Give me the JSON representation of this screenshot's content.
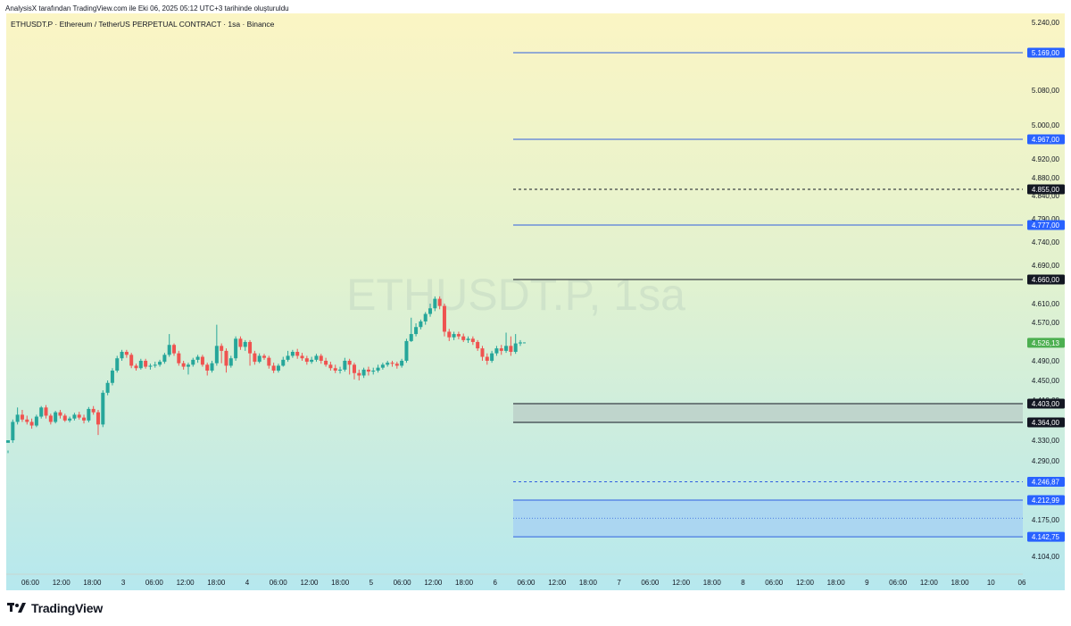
{
  "header": {
    "credit": "AnalysisX tarafından TradingView.com ile Eki 06, 2025 05:12 UTC+3 tarihinde oluşturuldu",
    "symbol_line": "ETHUSDT.P · Ethereum / TetherUS PERPETUAL CONTRACT · 1sa · Binance"
  },
  "watermark": "ETHUSDT.P, 1sa",
  "footer": {
    "brand": "TradingView",
    "logo_icon": "tradingview-logo-icon"
  },
  "colors": {
    "bg_top": "#fbf5c4",
    "bg_bottom": "#b6e8ee",
    "up": "#26a69a",
    "down": "#ef5350",
    "blue_line": "#2f5fe0",
    "blue_zone": "#a8d4f2",
    "grey_zone": "#b7c7c3",
    "current_price_label": "#4caf50"
  },
  "chart_data": {
    "type": "candlestick",
    "y_axis_ticks": [
      {
        "value": 5240,
        "label": "5.240,00"
      },
      {
        "value": 5080,
        "label": "5.080,00"
      },
      {
        "value": 5000,
        "label": "5.000,00"
      },
      {
        "value": 4920,
        "label": "4.920,00"
      },
      {
        "value": 4880,
        "label": "4.880,00"
      },
      {
        "value": 4840,
        "label": "4.840,00"
      },
      {
        "value": 4790,
        "label": "4.790,00"
      },
      {
        "value": 4740,
        "label": "4.740,00"
      },
      {
        "value": 4690,
        "label": "4.690,00"
      },
      {
        "value": 4610,
        "label": "4.610,00"
      },
      {
        "value": 4570,
        "label": "4.570,00"
      },
      {
        "value": 4490,
        "label": "4.490,00"
      },
      {
        "value": 4450,
        "label": "4.450,00"
      },
      {
        "value": 4410,
        "label": "4.410,00"
      },
      {
        "value": 4330,
        "label": "4.330,00"
      },
      {
        "value": 4290,
        "label": "4.290,00"
      },
      {
        "value": 4175,
        "label": "4.175,00"
      },
      {
        "value": 4104,
        "label": "4.104,00"
      }
    ],
    "x_axis_labels": [
      "06:00",
      "12:00",
      "18:00",
      "3",
      "06:00",
      "12:00",
      "18:00",
      "4",
      "06:00",
      "12:00",
      "18:00",
      "5",
      "06:00",
      "12:00",
      "18:00",
      "6",
      "06:00",
      "12:00",
      "18:00",
      "7",
      "06:00",
      "12:00",
      "18:00",
      "8",
      "06:00",
      "12:00",
      "18:00",
      "9",
      "06:00",
      "12:00",
      "18:00",
      "10",
      "06"
    ],
    "horizontal_levels": [
      {
        "value": 5169,
        "label": "5.169,00",
        "style": "solid",
        "color": "#2f5fe0"
      },
      {
        "value": 4967,
        "label": "4.967,00",
        "style": "solid",
        "color": "#2f5fe0"
      },
      {
        "value": 4855,
        "label": "4.855,00",
        "style": "dashed",
        "color": "#131722"
      },
      {
        "value": 4777,
        "label": "4.777,00",
        "style": "solid",
        "color": "#2f5fe0"
      },
      {
        "value": 4660,
        "label": "4.660,00",
        "style": "solid",
        "color": "#131722"
      },
      {
        "value": 4403,
        "label": "4.403,00",
        "style": "solid",
        "color": "#131722"
      },
      {
        "value": 4364,
        "label": "4.364,00",
        "style": "solid",
        "color": "#131722"
      },
      {
        "value": 4246.87,
        "label": "4.246,87",
        "style": "dashed",
        "color": "#2f5fe0"
      },
      {
        "value": 4212.99,
        "label": "4.212,99",
        "style": "solid",
        "color": "#2f5fe0"
      },
      {
        "value": 4142.75,
        "label": "4.142,75",
        "style": "solid",
        "color": "#2f5fe0"
      }
    ],
    "zones": [
      {
        "top": 4403,
        "bottom": 4364,
        "kind": "grey"
      },
      {
        "top": 4212.99,
        "bottom": 4142.75,
        "kind": "blue",
        "midline": 4178
      }
    ],
    "current_price": {
      "value": 4526.13,
      "label": "4.526,13"
    },
    "candle_interval": "1sa",
    "candles": [
      [
        4325,
        4330,
        4310,
        4305
      ],
      [
        4330,
        4365,
        4370,
        4325
      ],
      [
        4365,
        4380,
        4395,
        4360
      ],
      [
        4380,
        4370,
        4390,
        4365
      ],
      [
        4370,
        4365,
        4378,
        4360
      ],
      [
        4365,
        4358,
        4372,
        4352
      ],
      [
        4358,
        4376,
        4380,
        4355
      ],
      [
        4376,
        4395,
        4398,
        4372
      ],
      [
        4395,
        4378,
        4400,
        4372
      ],
      [
        4378,
        4365,
        4382,
        4360
      ],
      [
        4365,
        4385,
        4388,
        4362
      ],
      [
        4385,
        4378,
        4390,
        4372
      ],
      [
        4378,
        4368,
        4382,
        4365
      ],
      [
        4368,
        4372,
        4376,
        4364
      ],
      [
        4372,
        4380,
        4384,
        4368
      ],
      [
        4380,
        4374,
        4386,
        4370
      ],
      [
        4374,
        4368,
        4380,
        4362
      ],
      [
        4368,
        4392,
        4396,
        4364
      ],
      [
        4392,
        4385,
        4398,
        4380
      ],
      [
        4385,
        4360,
        4390,
        4340
      ],
      [
        4360,
        4425,
        4430,
        4355
      ],
      [
        4425,
        4445,
        4450,
        4420
      ],
      [
        4445,
        4470,
        4475,
        4440
      ],
      [
        4470,
        4495,
        4500,
        4466
      ],
      [
        4495,
        4508,
        4512,
        4490
      ],
      [
        4508,
        4502,
        4512,
        4496
      ],
      [
        4502,
        4480,
        4506,
        4475
      ],
      [
        4480,
        4475,
        4484,
        4470
      ],
      [
        4475,
        4490,
        4494,
        4472
      ],
      [
        4490,
        4478,
        4494,
        4474
      ],
      [
        4478,
        4480,
        4484,
        4472
      ],
      [
        4480,
        4482,
        4488,
        4476
      ],
      [
        4482,
        4488,
        4492,
        4478
      ],
      [
        4488,
        4502,
        4506,
        4484
      ],
      [
        4502,
        4522,
        4545,
        4498
      ],
      [
        4522,
        4505,
        4525,
        4500
      ],
      [
        4505,
        4485,
        4510,
        4480
      ],
      [
        4485,
        4478,
        4490,
        4472
      ],
      [
        4478,
        4482,
        4486,
        4462
      ],
      [
        4482,
        4492,
        4496,
        4478
      ],
      [
        4492,
        4498,
        4502,
        4486
      ],
      [
        4498,
        4482,
        4502,
        4478
      ],
      [
        4482,
        4470,
        4486,
        4460
      ],
      [
        4470,
        4485,
        4490,
        4466
      ],
      [
        4485,
        4520,
        4565,
        4480
      ],
      [
        4520,
        4510,
        4525,
        4485
      ],
      [
        4510,
        4480,
        4515,
        4466
      ],
      [
        4480,
        4495,
        4500,
        4476
      ],
      [
        4495,
        4535,
        4540,
        4490
      ],
      [
        4535,
        4518,
        4540,
        4512
      ],
      [
        4518,
        4528,
        4532,
        4510
      ],
      [
        4528,
        4505,
        4532,
        4480
      ],
      [
        4505,
        4488,
        4510,
        4482
      ],
      [
        4488,
        4500,
        4505,
        4485
      ],
      [
        4500,
        4496,
        4504,
        4492
      ],
      [
        4496,
        4480,
        4500,
        4474
      ],
      [
        4480,
        4470,
        4486,
        4465
      ],
      [
        4470,
        4480,
        4484,
        4466
      ],
      [
        4480,
        4492,
        4498,
        4478
      ],
      [
        4492,
        4500,
        4510,
        4488
      ],
      [
        4500,
        4508,
        4512,
        4496
      ],
      [
        4508,
        4500,
        4514,
        4494
      ],
      [
        4500,
        4495,
        4506,
        4490
      ],
      [
        4495,
        4488,
        4500,
        4482
      ],
      [
        4488,
        4492,
        4498,
        4484
      ],
      [
        4492,
        4500,
        4504,
        4488
      ],
      [
        4500,
        4490,
        4504,
        4484
      ],
      [
        4490,
        4482,
        4496,
        4478
      ],
      [
        4482,
        4475,
        4488,
        4470
      ],
      [
        4475,
        4470,
        4482,
        4465
      ],
      [
        4470,
        4472,
        4478,
        4464
      ],
      [
        4472,
        4490,
        4496,
        4468
      ],
      [
        4490,
        4482,
        4494,
        4462
      ],
      [
        4482,
        4465,
        4486,
        4452
      ],
      [
        4465,
        4460,
        4472,
        4450
      ],
      [
        4460,
        4472,
        4476,
        4455
      ],
      [
        4472,
        4468,
        4478,
        4460
      ],
      [
        4468,
        4470,
        4476,
        4462
      ],
      [
        4470,
        4476,
        4482,
        4466
      ],
      [
        4476,
        4482,
        4486,
        4472
      ],
      [
        4482,
        4486,
        4490,
        4478
      ],
      [
        4486,
        4484,
        4490,
        4478
      ],
      [
        4484,
        4480,
        4488,
        4474
      ],
      [
        4480,
        4490,
        4494,
        4476
      ],
      [
        4490,
        4530,
        4535,
        4486
      ],
      [
        4530,
        4545,
        4580,
        4528
      ],
      [
        4545,
        4560,
        4568,
        4540
      ],
      [
        4560,
        4572,
        4576,
        4555
      ],
      [
        4572,
        4588,
        4592,
        4565
      ],
      [
        4588,
        4600,
        4610,
        4582
      ],
      [
        4600,
        4620,
        4625,
        4594
      ],
      [
        4620,
        4605,
        4625,
        4598
      ],
      [
        4605,
        4550,
        4610,
        4540
      ],
      [
        4550,
        4538,
        4556,
        4530
      ],
      [
        4538,
        4545,
        4550,
        4532
      ],
      [
        4545,
        4540,
        4550,
        4534
      ],
      [
        4540,
        4532,
        4546,
        4528
      ],
      [
        4532,
        4535,
        4540,
        4526
      ],
      [
        4535,
        4528,
        4540,
        4522
      ],
      [
        4528,
        4515,
        4532,
        4510
      ],
      [
        4515,
        4498,
        4520,
        4490
      ],
      [
        4498,
        4490,
        4505,
        4482
      ],
      [
        4490,
        4505,
        4510,
        4486
      ],
      [
        4505,
        4515,
        4520,
        4500
      ],
      [
        4515,
        4510,
        4522,
        4502
      ],
      [
        4510,
        4520,
        4548,
        4506
      ],
      [
        4520,
        4508,
        4540,
        4500
      ],
      [
        4508,
        4525,
        4545,
        4504
      ],
      [
        4525,
        4527,
        4532,
        4520
      ]
    ]
  }
}
